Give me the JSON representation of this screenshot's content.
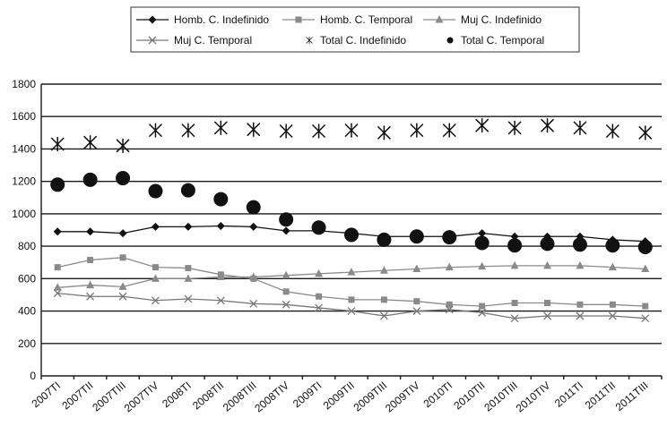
{
  "chart_data": {
    "type": "line",
    "title": "",
    "xlabel": "",
    "ylabel": "",
    "ylim": [
      0,
      1800
    ],
    "yticks": [
      0,
      200,
      400,
      600,
      800,
      1000,
      1200,
      1400,
      1600,
      1800
    ],
    "grid": true,
    "legend_position": "top-center",
    "categories": [
      "2007TI",
      "2007TII",
      "2007TIII",
      "2007TIV",
      "2008TI",
      "2008TII",
      "2008TIII",
      "2008TIV",
      "2009TI",
      "2009TII",
      "2009TIII",
      "2009TIV",
      "2010TI",
      "2010TII",
      "2010TIII",
      "2010TIV",
      "2011TI",
      "2011TII",
      "2011TIII"
    ],
    "series": [
      {
        "name": "Homb. C. Indefinido",
        "marker": "diamond",
        "line": true,
        "color": "#111111",
        "values": [
          890,
          890,
          880,
          920,
          920,
          925,
          920,
          895,
          895,
          880,
          860,
          860,
          860,
          880,
          860,
          860,
          860,
          840,
          830
        ]
      },
      {
        "name": "Homb. C. Temporal",
        "marker": "square",
        "line": true,
        "color": "#8a8a8a",
        "values": [
          670,
          715,
          730,
          670,
          665,
          625,
          600,
          520,
          490,
          470,
          470,
          460,
          440,
          430,
          450,
          450,
          440,
          440,
          430
        ]
      },
      {
        "name": "Muj C. Indefinido",
        "marker": "triangle",
        "line": true,
        "color": "#8a8a8a",
        "values": [
          545,
          560,
          550,
          600,
          600,
          610,
          610,
          620,
          630,
          640,
          650,
          660,
          670,
          675,
          680,
          680,
          680,
          670,
          660
        ]
      },
      {
        "name": "Muj C. Temporal",
        "marker": "x",
        "line": true,
        "color": "#777777",
        "values": [
          510,
          490,
          490,
          465,
          475,
          465,
          445,
          440,
          420,
          400,
          370,
          400,
          410,
          390,
          355,
          370,
          370,
          370,
          355
        ]
      },
      {
        "name": "Total C. Indefinido",
        "marker": "asterisk",
        "line": false,
        "color": "#111111",
        "values": [
          1430,
          1440,
          1420,
          1515,
          1515,
          1530,
          1520,
          1510,
          1510,
          1515,
          1500,
          1515,
          1515,
          1545,
          1530,
          1545,
          1530,
          1510,
          1500
        ]
      },
      {
        "name": "Total C. Temporal",
        "marker": "circle",
        "line": false,
        "color": "#111111",
        "values": [
          1180,
          1210,
          1220,
          1140,
          1145,
          1090,
          1040,
          965,
          915,
          870,
          840,
          860,
          855,
          820,
          805,
          815,
          810,
          805,
          795
        ]
      }
    ]
  }
}
